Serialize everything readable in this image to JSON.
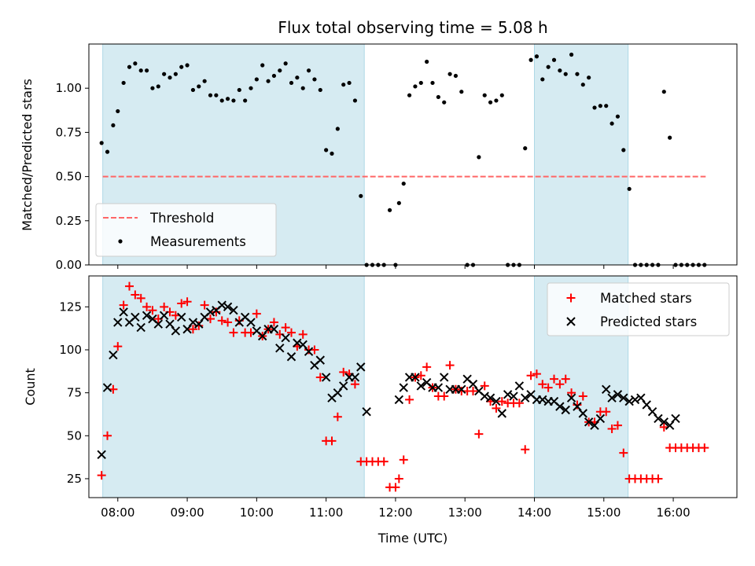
{
  "figure": {
    "title": "Flux total observing time = 5.08 h",
    "xlabel": "Time (UTC)"
  },
  "chart_data": [
    {
      "type": "scatter",
      "ylabel": "Matched/Predicted stars",
      "xlim": [
        "07:35",
        "16:55"
      ],
      "ylim": [
        0,
        1.25
      ],
      "yticks": [
        "0.00",
        "0.25",
        "0.50",
        "0.75",
        "1.00"
      ],
      "shaded_intervals": [
        [
          "07:47",
          "11:33"
        ],
        [
          "14:00",
          "15:21"
        ]
      ],
      "threshold": {
        "name": "Threshold",
        "value": 0.5,
        "x_range": [
          "07:47",
          "16:28"
        ],
        "color": "#ff6666"
      },
      "series": [
        {
          "name": "Measurements",
          "color": "#000000",
          "x": [
            "07:46",
            "07:51",
            "07:56",
            "08:00",
            "08:05",
            "08:10",
            "08:15",
            "08:20",
            "08:25",
            "08:30",
            "08:35",
            "08:40",
            "08:45",
            "08:50",
            "08:55",
            "09:00",
            "09:05",
            "09:10",
            "09:15",
            "09:20",
            "09:25",
            "09:30",
            "09:35",
            "09:40",
            "09:45",
            "09:50",
            "09:55",
            "10:00",
            "10:05",
            "10:10",
            "10:15",
            "10:20",
            "10:25",
            "10:30",
            "10:35",
            "10:40",
            "10:45",
            "10:50",
            "10:55",
            "11:00",
            "11:05",
            "11:10",
            "11:15",
            "11:20",
            "11:25",
            "11:30",
            "11:35",
            "11:40",
            "11:45",
            "11:50",
            "11:55",
            "12:00",
            "12:03",
            "12:07",
            "12:12",
            "12:17",
            "12:22",
            "12:27",
            "12:32",
            "12:37",
            "12:42",
            "12:47",
            "12:52",
            "12:57",
            "13:02",
            "13:07",
            "13:12",
            "13:17",
            "13:22",
            "13:27",
            "13:32",
            "13:37",
            "13:42",
            "13:47",
            "13:52",
            "13:57",
            "14:02",
            "14:07",
            "14:12",
            "14:17",
            "14:22",
            "14:27",
            "14:32",
            "14:37",
            "14:42",
            "14:47",
            "14:52",
            "14:57",
            "15:02",
            "15:07",
            "15:12",
            "15:17",
            "15:22",
            "15:27",
            "15:32",
            "15:37",
            "15:42",
            "15:47",
            "15:52",
            "15:57",
            "16:02",
            "16:07",
            "16:12",
            "16:17",
            "16:22",
            "16:27"
          ],
          "y": [
            0.69,
            0.64,
            0.79,
            0.87,
            1.03,
            1.12,
            1.14,
            1.1,
            1.1,
            1.0,
            1.01,
            1.08,
            1.06,
            1.08,
            1.12,
            1.13,
            0.99,
            1.01,
            1.04,
            0.96,
            0.96,
            0.93,
            0.94,
            0.93,
            0.99,
            0.93,
            1.0,
            1.05,
            1.13,
            1.04,
            1.07,
            1.1,
            1.14,
            1.03,
            1.06,
            1.0,
            1.1,
            1.05,
            0.99,
            0.65,
            0.63,
            0.77,
            1.02,
            1.03,
            0.93,
            0.39,
            0.0,
            0.0,
            0.0,
            0.0,
            0.31,
            0.0,
            0.35,
            0.46,
            0.96,
            1.01,
            1.03,
            1.15,
            1.03,
            0.95,
            0.92,
            1.08,
            1.07,
            0.98,
            0.0,
            0.0,
            0.61,
            0.96,
            0.92,
            0.93,
            0.96,
            0.0,
            0.0,
            0.0,
            0.66,
            1.16,
            1.18,
            1.05,
            1.12,
            1.16,
            1.1,
            1.08,
            1.19,
            1.08,
            1.02,
            1.06,
            0.89,
            0.9,
            0.9,
            0.8,
            0.84,
            0.65,
            0.43,
            0.0,
            0.0,
            0.0,
            0.0,
            0.0,
            0.98,
            0.72,
            0.0,
            0.0,
            0.0,
            0.0,
            0.0,
            0.0
          ]
        }
      ],
      "legend": {
        "position": "lower left",
        "entries": [
          "Threshold",
          "Measurements"
        ]
      }
    },
    {
      "type": "scatter",
      "ylabel": "Count",
      "xlim": [
        "07:35",
        "16:55"
      ],
      "ylim": [
        14,
        143
      ],
      "yticks": [
        "25",
        "50",
        "75",
        "100",
        "125"
      ],
      "xticks": [
        "08:00",
        "09:00",
        "10:00",
        "11:00",
        "12:00",
        "13:00",
        "14:00",
        "15:00",
        "16:00"
      ],
      "shaded_intervals": [
        [
          "07:47",
          "11:33"
        ],
        [
          "14:00",
          "15:21"
        ]
      ],
      "series": [
        {
          "name": "Matched stars",
          "marker": "+",
          "color": "#ff0000",
          "x": [
            "07:46",
            "07:51",
            "07:56",
            "08:00",
            "08:05",
            "08:10",
            "08:15",
            "08:20",
            "08:25",
            "08:30",
            "08:35",
            "08:40",
            "08:45",
            "08:50",
            "08:55",
            "09:00",
            "09:05",
            "09:10",
            "09:15",
            "09:20",
            "09:25",
            "09:30",
            "09:35",
            "09:40",
            "09:45",
            "09:50",
            "09:55",
            "10:00",
            "10:05",
            "10:10",
            "10:15",
            "10:20",
            "10:25",
            "10:30",
            "10:35",
            "10:40",
            "10:45",
            "10:50",
            "10:55",
            "11:00",
            "11:05",
            "11:10",
            "11:15",
            "11:20",
            "11:25",
            "11:30",
            "11:35",
            "11:40",
            "11:45",
            "11:50",
            "11:55",
            "12:00",
            "12:03",
            "12:07",
            "12:12",
            "12:17",
            "12:22",
            "12:27",
            "12:32",
            "12:37",
            "12:42",
            "12:47",
            "12:52",
            "12:57",
            "13:02",
            "13:07",
            "13:12",
            "13:17",
            "13:22",
            "13:27",
            "13:32",
            "13:37",
            "13:42",
            "13:47",
            "13:52",
            "13:57",
            "14:02",
            "14:07",
            "14:12",
            "14:17",
            "14:22",
            "14:27",
            "14:32",
            "14:37",
            "14:42",
            "14:47",
            "14:52",
            "14:57",
            "15:02",
            "15:07",
            "15:12",
            "15:17",
            "15:22",
            "15:27",
            "15:32",
            "15:37",
            "15:42",
            "15:47",
            "15:52",
            "15:57",
            "16:02",
            "16:07",
            "16:12",
            "16:17",
            "16:22",
            "16:27"
          ],
          "y": [
            27,
            50,
            77,
            102,
            126,
            137,
            132,
            130,
            125,
            123,
            118,
            125,
            122,
            120,
            127,
            128,
            112,
            114,
            126,
            118,
            122,
            117,
            116,
            110,
            117,
            110,
            110,
            121,
            108,
            112,
            116,
            109,
            113,
            110,
            102,
            109,
            100,
            100,
            84,
            47,
            47,
            61,
            87,
            86,
            80,
            35,
            35,
            35,
            35,
            35,
            20,
            20,
            25,
            36,
            71,
            84,
            85,
            90,
            78,
            73,
            73,
            91,
            77,
            76,
            76,
            76,
            51,
            79,
            70,
            66,
            70,
            69,
            69,
            69,
            42,
            85,
            86,
            80,
            78,
            83,
            80,
            83,
            75,
            68,
            73,
            58,
            58,
            64,
            64,
            54,
            56,
            40,
            25,
            25,
            25,
            25,
            25,
            25,
            55,
            43,
            43,
            43,
            43,
            43,
            43,
            43
          ]
        },
        {
          "name": "Predicted stars",
          "marker": "x",
          "color": "#000000",
          "x": [
            "07:46",
            "07:51",
            "07:56",
            "08:00",
            "08:05",
            "08:10",
            "08:15",
            "08:20",
            "08:25",
            "08:30",
            "08:35",
            "08:40",
            "08:45",
            "08:50",
            "08:55",
            "09:00",
            "09:05",
            "09:10",
            "09:15",
            "09:20",
            "09:25",
            "09:30",
            "09:35",
            "09:40",
            "09:45",
            "09:50",
            "09:55",
            "10:00",
            "10:05",
            "10:10",
            "10:15",
            "10:20",
            "10:25",
            "10:30",
            "10:35",
            "10:40",
            "10:45",
            "10:50",
            "10:55",
            "11:00",
            "11:05",
            "11:10",
            "11:15",
            "11:20",
            "11:25",
            "11:30",
            "11:35",
            "12:03",
            "12:07",
            "12:12",
            "12:17",
            "12:22",
            "12:27",
            "12:32",
            "12:37",
            "12:42",
            "12:47",
            "12:52",
            "12:57",
            "13:02",
            "13:07",
            "13:12",
            "13:17",
            "13:22",
            "13:27",
            "13:32",
            "13:37",
            "13:42",
            "13:47",
            "13:52",
            "13:57",
            "14:02",
            "14:07",
            "14:12",
            "14:17",
            "14:22",
            "14:27",
            "14:32",
            "14:37",
            "14:42",
            "14:47",
            "14:52",
            "14:57",
            "15:02",
            "15:07",
            "15:12",
            "15:17",
            "15:22",
            "15:27",
            "15:32",
            "15:37",
            "15:42",
            "15:47",
            "15:52",
            "15:57",
            "16:02"
          ],
          "y": [
            39,
            78,
            97,
            116,
            122,
            116,
            119,
            113,
            120,
            118,
            115,
            120,
            115,
            111,
            119,
            112,
            116,
            115,
            119,
            122,
            123,
            126,
            125,
            123,
            116,
            119,
            116,
            111,
            108,
            112,
            112,
            101,
            107,
            96,
            104,
            103,
            99,
            91,
            94,
            84,
            72,
            75,
            79,
            84,
            84,
            90,
            64,
            71,
            78,
            84,
            84,
            79,
            81,
            78,
            78,
            84,
            77,
            77,
            77,
            83,
            80,
            76,
            73,
            72,
            70,
            63,
            74,
            73,
            79,
            72,
            74,
            71,
            71,
            70,
            70,
            67,
            65,
            72,
            67,
            63,
            58,
            56,
            60,
            77,
            72,
            74,
            72,
            70,
            71,
            72,
            68,
            64,
            60,
            58,
            56,
            60
          ]
        }
      ],
      "legend": {
        "position": "upper right",
        "entries": [
          "Matched stars",
          "Predicted stars"
        ]
      }
    }
  ]
}
